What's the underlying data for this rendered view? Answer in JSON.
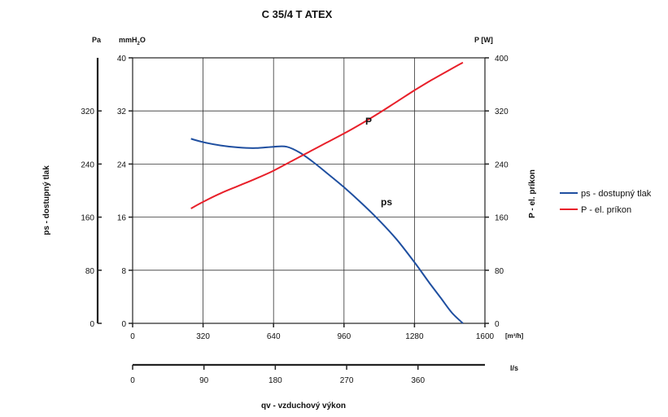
{
  "chart_data": {
    "type": "line",
    "title": "C 35/4 T ATEX",
    "x_axis": {
      "unit": "[m³/h]",
      "ticks": [
        0,
        320,
        640,
        960,
        1280,
        1600
      ],
      "range": [
        0,
        1600
      ]
    },
    "x2_axis": {
      "unit": "l/s",
      "ticks": [
        0,
        90,
        180,
        270,
        360
      ],
      "label": "qv - vzduchový výkon"
    },
    "y_left_pa": {
      "unit": "Pa",
      "ticks": [
        0,
        80,
        160,
        240,
        320
      ],
      "label": "ps - dostupný tlak",
      "range": [
        0,
        400
      ]
    },
    "y_left_mmh2o": {
      "unit_main": "mmH",
      "unit_sub": "2",
      "unit_tail": "O",
      "ticks": [
        0,
        8,
        16,
        24,
        32,
        40
      ]
    },
    "y_right": {
      "unit": "P [W]",
      "ticks": [
        0,
        80,
        160,
        240,
        320,
        400
      ],
      "label": "P - el. príkon",
      "range": [
        0,
        400
      ]
    },
    "grid": true,
    "legend_position": "right",
    "series": [
      {
        "name": "ps - dostupný tlak",
        "curve_label": "ps",
        "color": "#1f4fa0",
        "axis": "left",
        "x": [
          265,
          320,
          400,
          480,
          560,
          640,
          700,
          760,
          820,
          880,
          960,
          1040,
          1120,
          1200,
          1280,
          1350,
          1400,
          1450,
          1500
        ],
        "y": [
          278,
          273,
          268,
          265,
          264,
          266,
          266,
          257,
          243,
          227,
          205,
          181,
          155,
          126,
          92,
          60,
          38,
          16,
          0
        ]
      },
      {
        "name": "P - el. príkon",
        "curve_label": "P",
        "color": "#e8202a",
        "axis": "right",
        "x": [
          265,
          320,
          400,
          480,
          560,
          640,
          720,
          800,
          880,
          960,
          1040,
          1120,
          1200,
          1280,
          1360,
          1440,
          1500
        ],
        "y": [
          173,
          183,
          196,
          207,
          218,
          230,
          244,
          258,
          272,
          286,
          301,
          317,
          334,
          351,
          367,
          382,
          393
        ]
      }
    ]
  }
}
